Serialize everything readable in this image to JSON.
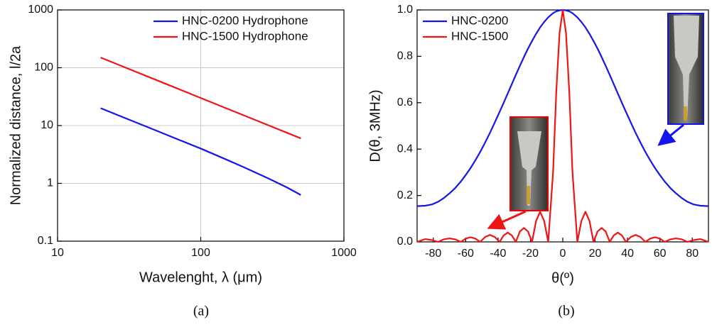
{
  "chart_data": [
    {
      "type": "line",
      "caption": "(a)",
      "x_label": "Wavelenght, λ (μm)",
      "y_label": "Normalized distance, l/2a",
      "x": [
        20,
        30,
        50,
        70,
        100,
        150,
        200,
        300,
        400,
        500
      ],
      "series": [
        {
          "name": "HNC-0200 Hydrophone",
          "color": "#1414f0",
          "values": [
            20,
            13.3,
            8,
            5.7,
            4,
            2.6,
            1.9,
            1.2,
            0.85,
            0.63
          ]
        },
        {
          "name": "HNC-1500 Hydrophone",
          "color": "#f01414",
          "values": [
            150,
            100,
            60,
            42.9,
            30,
            20,
            15,
            10,
            7.5,
            6
          ]
        }
      ],
      "xlim": [
        10,
        1000
      ],
      "ylim": [
        0.1,
        1000
      ],
      "xticks": [
        10,
        100,
        1000
      ],
      "yticks": [
        0.1,
        1,
        10,
        100,
        1000
      ],
      "xlog": true,
      "ylog": true,
      "grid": true,
      "legend": "upper right"
    },
    {
      "type": "line",
      "caption": "(b)",
      "x_label": "θ(º)",
      "y_label": "D(θ, 3MHz)",
      "x": [
        -90,
        -85,
        -81,
        -77,
        -73.5,
        -70,
        -66.5,
        -63,
        -60,
        -57,
        -54,
        -51,
        -48,
        -45,
        -42,
        -39,
        -36.5,
        -34,
        -31.5,
        -29,
        -26.5,
        -24,
        -21.5,
        -19,
        -16.5,
        -14,
        -11.5,
        -9,
        -6,
        -4,
        -2,
        0,
        2,
        4,
        6,
        9,
        11.5,
        14,
        16.5,
        19,
        21.5,
        24,
        26.5,
        29,
        31.5,
        34,
        36.5,
        39,
        42,
        45,
        48,
        51,
        54,
        57,
        60,
        63,
        66.5,
        70,
        73.5,
        77,
        81,
        85,
        90
      ],
      "series": [
        {
          "name": "HNC-0200",
          "color": "#1414f0",
          "values": [
            0.154,
            0.156,
            0.161,
            0.173,
            0.189,
            0.209,
            0.232,
            0.26,
            0.288,
            0.318,
            0.352,
            0.388,
            0.428,
            0.47,
            0.515,
            0.561,
            0.6,
            0.64,
            0.68,
            0.72,
            0.759,
            0.797,
            0.833,
            0.866,
            0.897,
            0.925,
            0.948,
            0.968,
            0.986,
            0.994,
            0.998,
            1,
            0.998,
            0.994,
            0.986,
            0.968,
            0.948,
            0.925,
            0.897,
            0.866,
            0.833,
            0.797,
            0.759,
            0.72,
            0.68,
            0.64,
            0.6,
            0.561,
            0.515,
            0.47,
            0.428,
            0.388,
            0.352,
            0.318,
            0.288,
            0.26,
            0.232,
            0.209,
            0.189,
            0.173,
            0.161,
            0.156,
            0.154
          ]
        },
        {
          "name": "HNC-1500",
          "color": "#f01414",
          "values": [
            0,
            0.012,
            0.008,
            0,
            0.011,
            0.015,
            0.011,
            0,
            0.014,
            0.02,
            0.014,
            0,
            0.021,
            0.03,
            0.021,
            0,
            0.028,
            0.04,
            0.028,
            0,
            0.045,
            0.06,
            0.045,
            0,
            0.09,
            0.13,
            0.09,
            0,
            0.3,
            0.65,
            0.9,
            1,
            0.9,
            0.65,
            0.3,
            0,
            0.09,
            0.13,
            0.09,
            0,
            0.045,
            0.06,
            0.045,
            0,
            0.028,
            0.04,
            0.028,
            0,
            0.021,
            0.03,
            0.021,
            0,
            0.014,
            0.02,
            0.014,
            0,
            0.011,
            0.015,
            0.011,
            0,
            0.008,
            0.012,
            0
          ]
        }
      ],
      "xlim": [
        -90,
        90
      ],
      "ylim": [
        0,
        1.0
      ],
      "xticks": [
        -80,
        -60,
        -40,
        -20,
        0,
        20,
        40,
        60,
        80
      ],
      "yticks": [
        {
          "value": 0,
          "label": "0.0"
        },
        0.2,
        0.4,
        0.6,
        0.8,
        {
          "value": 1,
          "label": "1.0"
        }
      ],
      "xlog": false,
      "ylog": false,
      "grid": false,
      "legend": "upper left"
    }
  ]
}
